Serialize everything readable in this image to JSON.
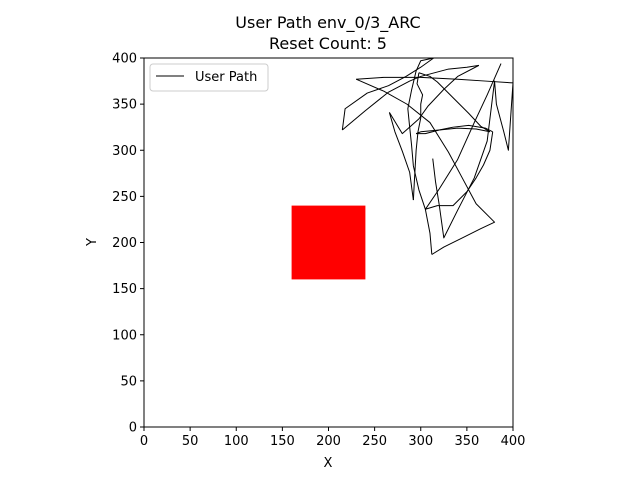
{
  "chart_data": {
    "type": "line",
    "title": "User Path env_0/3_ARC",
    "subtitle": "Reset Count: 5",
    "xlabel": "X",
    "ylabel": "Y",
    "xlim": [
      0,
      400
    ],
    "ylim": [
      0,
      400
    ],
    "xticks": [
      "0",
      "50",
      "100",
      "150",
      "200",
      "250",
      "300",
      "350",
      "400"
    ],
    "yticks": [
      "0",
      "50",
      "100",
      "150",
      "200",
      "250",
      "300",
      "350",
      "400"
    ],
    "grid": false,
    "legend": {
      "position": "top-left",
      "entries": [
        "User Path"
      ]
    },
    "series": [
      {
        "name": "User Path",
        "color": "#000000",
        "segments": [
          [
            [
              313,
              291
            ],
            [
              316,
              266
            ],
            [
              320,
              241
            ],
            [
              325,
              205
            ],
            [
              340,
              235
            ],
            [
              358,
              270
            ],
            [
              372,
              310
            ],
            [
              380,
              375
            ],
            [
              382,
              350
            ],
            [
              390,
              320
            ],
            [
              395,
              300
            ],
            [
              400,
              373
            ]
          ],
          [
            [
              400,
              373
            ],
            [
              370,
              375
            ],
            [
              340,
              377
            ],
            [
              300,
              379
            ],
            [
              260,
              379
            ],
            [
              230,
              377
            ]
          ],
          [
            [
              230,
              377
            ],
            [
              260,
              364
            ],
            [
              285,
              350
            ],
            [
              310,
              330
            ],
            [
              330,
              298
            ],
            [
              345,
              270
            ],
            [
              360,
              242
            ],
            [
              380,
              222
            ],
            [
              365,
              215
            ],
            [
              345,
              205
            ],
            [
              325,
              195
            ],
            [
              312,
              187
            ]
          ],
          [
            [
              312,
              187
            ],
            [
              310,
              210
            ],
            [
              305,
              236
            ],
            [
              298,
              257
            ],
            [
              292,
              283
            ]
          ],
          [
            [
              292,
              283
            ],
            [
              290,
              306
            ],
            [
              288,
              325
            ],
            [
              286,
              345
            ],
            [
              290,
              365
            ],
            [
              295,
              386
            ],
            [
              300,
              397
            ],
            [
              314,
              400
            ]
          ],
          [
            [
              314,
              400
            ],
            [
              300,
              390
            ],
            [
              284,
              380
            ],
            [
              265,
              370
            ],
            [
              242,
              362
            ],
            [
              218,
              345
            ],
            [
              215,
              322
            ]
          ],
          [
            [
              215,
              322
            ],
            [
              240,
              343
            ],
            [
              265,
              363
            ],
            [
              288,
              375
            ],
            [
              300,
              380
            ],
            [
              330,
              388
            ],
            [
              350,
              390
            ],
            [
              363,
              392
            ]
          ],
          [
            [
              363,
              392
            ],
            [
              340,
              380
            ],
            [
              325,
              366
            ],
            [
              308,
              348
            ],
            [
              298,
              334
            ],
            [
              280,
              318
            ],
            [
              266,
              341
            ]
          ],
          [
            [
              266,
              341
            ],
            [
              272,
              320
            ],
            [
              280,
              299
            ],
            [
              288,
              276
            ],
            [
              292,
              246
            ]
          ],
          [
            [
              292,
              246
            ],
            [
              293,
              265
            ],
            [
              295,
              300
            ],
            [
              297,
              320
            ],
            [
              300,
              335
            ],
            [
              300,
              350
            ],
            [
              302,
              360
            ],
            [
              296,
              372
            ],
            [
              298,
              384
            ]
          ],
          [
            [
              298,
              384
            ],
            [
              310,
              380
            ],
            [
              318,
              374
            ],
            [
              336,
              356
            ],
            [
              352,
              340
            ],
            [
              365,
              326
            ],
            [
              375,
              320
            ]
          ],
          [
            [
              375,
              320
            ],
            [
              360,
              323
            ],
            [
              340,
              324
            ],
            [
              320,
              322
            ],
            [
              300,
              320
            ],
            [
              295,
              318
            ]
          ],
          [
            [
              295,
              318
            ],
            [
              305,
              318
            ],
            [
              320,
              322
            ],
            [
              335,
              325
            ],
            [
              352,
              327
            ],
            [
              370,
              324
            ],
            [
              378,
              320
            ]
          ],
          [
            [
              378,
              320
            ],
            [
              375,
              300
            ],
            [
              368,
              284
            ],
            [
              360,
              270
            ],
            [
              350,
              255
            ],
            [
              335,
              240
            ],
            [
              318,
              240
            ],
            [
              305,
              236
            ]
          ],
          [
            [
              305,
              236
            ],
            [
              320,
              258
            ],
            [
              340,
              290
            ],
            [
              358,
              330
            ],
            [
              372,
              360
            ],
            [
              387,
              394
            ]
          ]
        ]
      }
    ],
    "rectangle": {
      "x0": 160,
      "x1": 240,
      "y0": 160,
      "y1": 240,
      "color": "#ff0000"
    }
  }
}
